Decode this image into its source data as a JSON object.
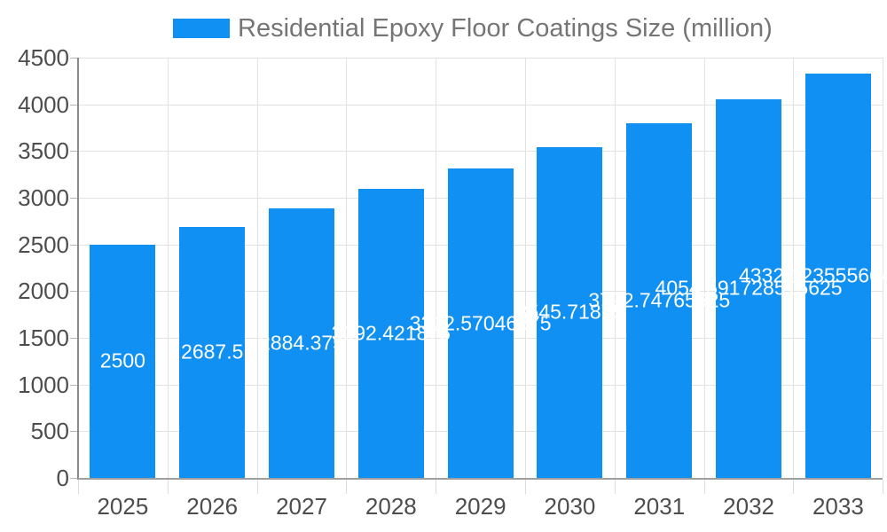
{
  "header": {
    "title": "Residential Epoxy Floor Coatings Size (million)"
  },
  "chart_data": {
    "type": "bar",
    "title": "Residential Epoxy Floor Coatings Size (million)",
    "legend": [
      {
        "label": "Residential Epoxy Floor Coatings Size (million)",
        "color": "#1190f3"
      }
    ],
    "legend_position": "top",
    "categories": [
      "2025",
      "2026",
      "2027",
      "2028",
      "2029",
      "2030",
      "2031",
      "2032",
      "2033"
    ],
    "values": [
      2500,
      2687.5,
      2884.375,
      3092.421875,
      3312.57046875,
      3545.71875,
      3792.74765625,
      4054.591728515625,
      4332.123555664062
    ],
    "value_labels": [
      "2500",
      "2687.5",
      "2884.375",
      "3092.421875",
      "3312.57046875",
      "3545.71875",
      "3792.74765625",
      "4054.591728515625",
      "4332.1235556640625"
    ],
    "xlabel": "",
    "ylabel": "",
    "ylim": [
      0,
      4500
    ],
    "ytick_step": 500,
    "yticks": [
      "0",
      "500",
      "1000",
      "1500",
      "2000",
      "2500",
      "3000",
      "3500",
      "4000",
      "4500"
    ],
    "grid": true,
    "bar_color": "#1190f3",
    "bar_label_color": "#ffffff",
    "axis_text_color": "#4d4d4d",
    "title_color": "#757575",
    "gridline_color": "#e2e2e2"
  }
}
